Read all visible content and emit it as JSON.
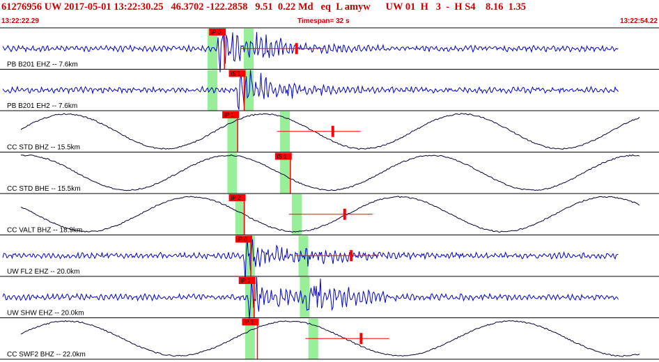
{
  "header": {
    "title": "61276956 UW 2017-05-01 13:22:30.25   46.3702 -122.2858   9.51  0.22 Md   eq  L amyw      UW 01  H   3  -  H S4    8.16  1.35",
    "start_time": "13:22:22.29",
    "timespan": "Timespan=  32 s",
    "end_time": "13:22:54.22"
  },
  "colors": {
    "title": "#cc0000",
    "wave_hf": "#0000cc",
    "wave_lf": "#000033",
    "pick_flag": "#ff0000",
    "pick_window": "#99ee99",
    "divider": "#000000"
  },
  "traces": [
    {
      "label": "PB B201 EHZ -- 7.6km",
      "kind": "hf",
      "pick": "iP 0",
      "pick_t": 0.33,
      "win": 0.315,
      "s_win": 0.37,
      "env_amp": 1.0
    },
    {
      "label": "PB B201 EH2 -- 7.6km",
      "kind": "hf",
      "pick": "iS 1",
      "pick_t": 0.36,
      "win": 0.315,
      "s_win": 0.37,
      "env_amp": 0.8
    },
    {
      "label": "CC STD BHZ -- 15.5km",
      "kind": "lf",
      "pick": "iP 1",
      "pick_t": 0.35,
      "win": 0.345,
      "s_win": 0.425,
      "env_amp": 0.0
    },
    {
      "label": "CC STD BHE -- 15.5km",
      "kind": "lf",
      "pick": "iS 1",
      "pick_t": 0.43,
      "win": 0.345,
      "s_win": 0.425,
      "env_amp": 0.0
    },
    {
      "label": "CC VALT BHZ -- 18.9km",
      "kind": "lf",
      "pick": "iP 2",
      "pick_t": 0.36,
      "win": 0.357,
      "s_win": 0.443,
      "env_amp": 0.0
    },
    {
      "label": "UW FL2 EHZ -- 20.0km",
      "kind": "hf",
      "pick": "iP 0",
      "pick_t": 0.37,
      "win": 0.372,
      "s_win": 0.453,
      "env_amp": 0.9
    },
    {
      "label": "UW SHW EHZ -- 20.0km",
      "kind": "hf",
      "pick": "iP 1",
      "pick_t": 0.375,
      "win": 0.372,
      "s_win": 0.455,
      "env_amp": 1.0
    },
    {
      "label": "CC SWF2 BHZ -- 22.0km",
      "kind": "lf",
      "pick": "iP 1",
      "pick_t": 0.38,
      "win": 0.372,
      "s_win": 0.468,
      "env_amp": 0.0
    }
  ]
}
